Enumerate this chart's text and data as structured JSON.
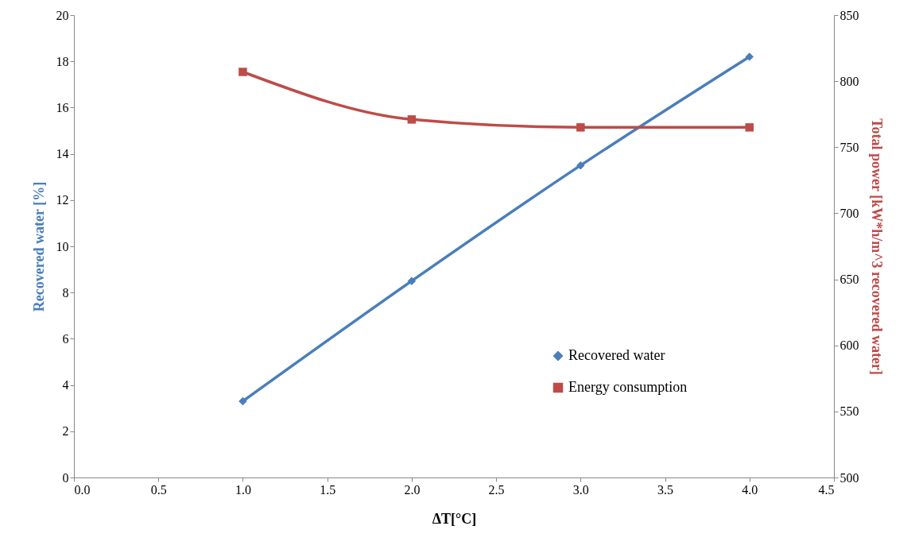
{
  "chart_data": {
    "type": "line",
    "xlabel": "ΔT[°C]",
    "ylabel": "Recovered water [%]",
    "y2label": "Total power [kW*h/m^3 recovered water]",
    "x": [
      1,
      2,
      3,
      4
    ],
    "series": [
      {
        "name": "Recovered water",
        "color": "#4a7ebb",
        "values": [
          3.3,
          8.5,
          13.5,
          18.2
        ],
        "marker": "diamond"
      },
      {
        "name": "Energy consumption",
        "color": "#be4b48",
        "values": [
          807,
          771,
          765,
          765
        ],
        "axis": "y2",
        "marker": "square"
      }
    ],
    "xlim": [
      0,
      4.5
    ],
    "xticks": [
      {
        "value": 0,
        "label": "0.0"
      },
      {
        "value": 0.5,
        "label": "0.5"
      },
      {
        "value": 1,
        "label": "1.0"
      },
      {
        "value": 1.5,
        "label": "1.5"
      },
      {
        "value": 2,
        "label": "2.0"
      },
      {
        "value": 2.5,
        "label": "2.5"
      },
      {
        "value": 3,
        "label": "3.0"
      },
      {
        "value": 3.5,
        "label": "3.5"
      },
      {
        "value": 4,
        "label": "4.0"
      },
      {
        "value": 4.5,
        "label": "4.5"
      }
    ],
    "ylim": [
      0,
      20
    ],
    "yticks": [
      0,
      2,
      4,
      6,
      8,
      10,
      12,
      14,
      16,
      18,
      20
    ],
    "y2lim": [
      500,
      850
    ],
    "y2ticks": [
      500,
      550,
      600,
      650,
      700,
      750,
      800,
      850
    ],
    "grid": false,
    "legend": "bottom right"
  }
}
